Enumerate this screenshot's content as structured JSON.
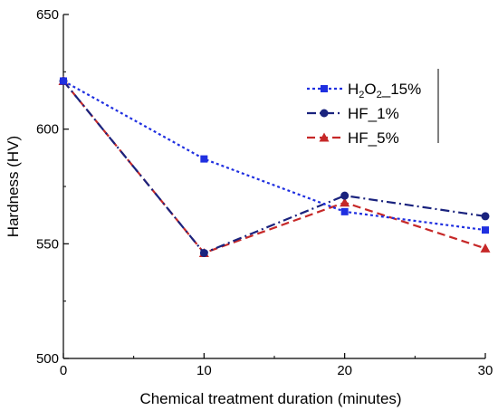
{
  "chart_data": {
    "type": "line",
    "title": "",
    "xlabel": "Chemical treatment duration (minutes)",
    "ylabel": "Hardness (HV)",
    "xlim": [
      0,
      30
    ],
    "ylim": [
      500,
      650
    ],
    "x_ticks": [
      0,
      10,
      20,
      30
    ],
    "y_ticks": [
      500,
      550,
      600,
      650
    ],
    "grid": false,
    "legend_position": "top-right",
    "series": [
      {
        "name": "H2O2_15%",
        "legend_parts": [
          "H",
          "2",
          "O",
          "2",
          "_15%"
        ],
        "color": "#1f2fe0",
        "marker": "square",
        "dash": "dotted",
        "x": [
          0,
          10,
          20,
          30
        ],
        "y": [
          621,
          587,
          564,
          556
        ]
      },
      {
        "name": "HF_1%",
        "color": "#1a237e",
        "marker": "circle",
        "dash": "dash-dot",
        "x": [
          0,
          10,
          20,
          30
        ],
        "y": [
          621,
          546,
          571,
          562
        ]
      },
      {
        "name": "HF_5%",
        "color": "#c62828",
        "marker": "triangle",
        "dash": "dashed",
        "x": [
          0,
          10,
          20,
          30
        ],
        "y": [
          621,
          546,
          568,
          548
        ]
      }
    ]
  }
}
